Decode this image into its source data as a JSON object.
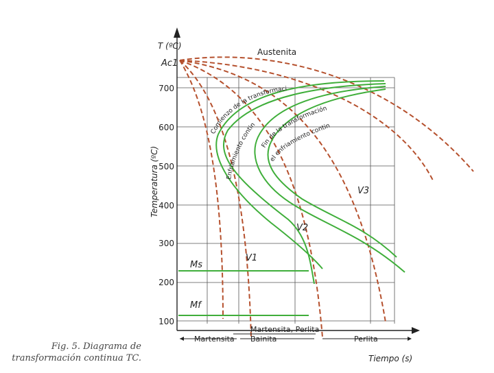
{
  "axes": {
    "y_axis_top_label": "T (ºC)",
    "y_axis_label": "Temperatura (ºC)",
    "x_axis_label": "Tiempo (s)",
    "ac1_label": "Ac1",
    "y_ticks": [
      "700",
      "600",
      "500",
      "400",
      "300",
      "200",
      "100"
    ]
  },
  "curve_labels": {
    "austenita": "Austenita",
    "start_transform": "Comienzo de la transformación",
    "start_cooling": "Enfriamiento continuo",
    "end_transform": "Fin de la transformación en",
    "end_cooling": "el enfriamiento continuo",
    "v1": "V1",
    "v2": "V2",
    "v3": "V3",
    "ms": "Ms",
    "mf": "Mf"
  },
  "regions": {
    "martensita_perlita": "Martensita, Perlita",
    "martensita": "Martensita",
    "bainita": "Bainita",
    "perlita": "Perlita"
  },
  "caption": {
    "line1": "Fig. 5. Diagrama de",
    "line2": "transformación continua TC."
  },
  "colors": {
    "cooling_curves": "#b5502d",
    "transformation_curves": "#3fae3a",
    "axes": "#222222",
    "grid": "#555555"
  }
}
